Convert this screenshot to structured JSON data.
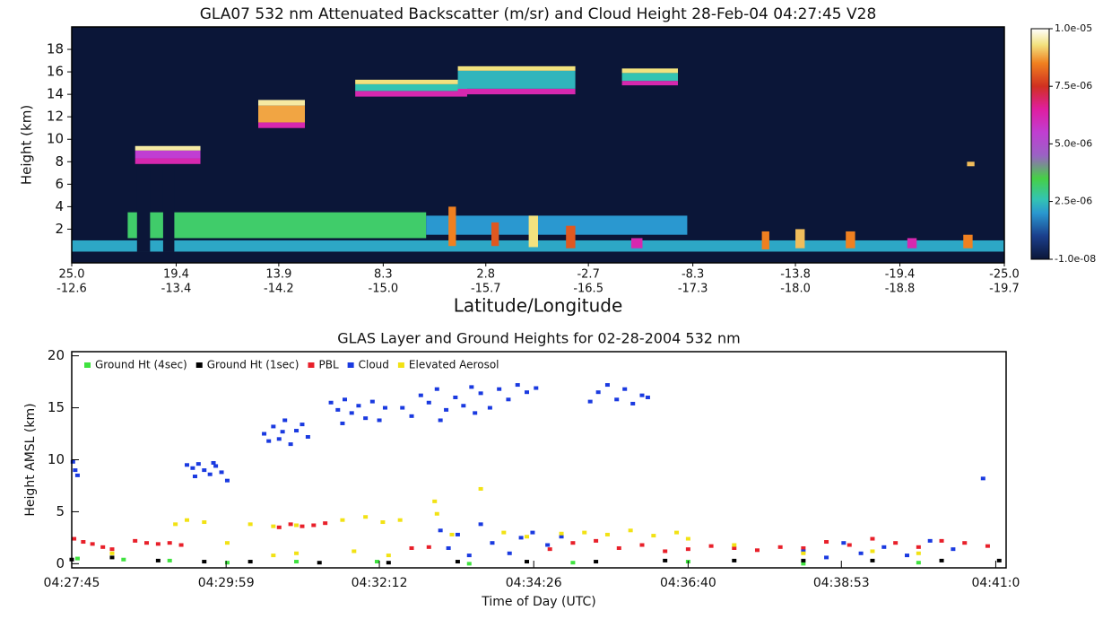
{
  "chart_data": [
    {
      "type": "heatmap",
      "title": "GLA07 532 nm Attenuated Backscatter (m/sr) and Cloud Height 28-Feb-04 04:27:45  V28",
      "ylabel": "Height (km)",
      "xlabel": "Latitude/Longitude",
      "xlim": [
        25.0,
        -25.0
      ],
      "ylim": [
        -1,
        20
      ],
      "xticks": [
        {
          "value": 25.0,
          "label": "25.0"
        },
        19.4,
        13.9,
        8.3,
        2.8,
        -2.7,
        -8.3,
        -13.8,
        -19.4,
        {
          "value": -25.0,
          "label": "-25.0"
        }
      ],
      "x2ticks": [
        -12.6,
        -13.4,
        -14.2,
        {
          "value": -15.0,
          "label": "-15.0"
        },
        -15.7,
        -16.5,
        -17.3,
        {
          "value": -18.0,
          "label": "-18.0"
        },
        -18.8,
        -19.7
      ],
      "yticks": [
        2,
        4,
        6,
        8,
        10,
        12,
        14,
        16,
        18
      ],
      "colorbar": {
        "lim": [
          -1e-08,
          1e-05
        ],
        "ticks": [
          {
            "value": 1e-05,
            "label": "1.0e-05"
          },
          {
            "value": 7.5e-06,
            "label": "7.5e-06"
          },
          {
            "value": 5e-06,
            "label": "5.0e-06"
          },
          {
            "value": 2.5e-06,
            "label": "2.5e-06"
          },
          {
            "value": -1e-08,
            "label": "-1.0e-08"
          }
        ],
        "colormap": [
          {
            "value": -1e-08,
            "color": "#0b1638"
          },
          {
            "value": 1e-06,
            "color": "#1b3f8c"
          },
          {
            "value": 2e-06,
            "color": "#2a98d0"
          },
          {
            "value": 2.6e-06,
            "color": "#33c4b2"
          },
          {
            "value": 3.5e-06,
            "color": "#46d046"
          },
          {
            "value": 4.5e-06,
            "color": "#9a62c4"
          },
          {
            "value": 5.5e-06,
            "color": "#c03ed2"
          },
          {
            "value": 6.5e-06,
            "color": "#e01ea0"
          },
          {
            "value": 7.5e-06,
            "color": "#d03020"
          },
          {
            "value": 8.5e-06,
            "color": "#f08020"
          },
          {
            "value": 9.3e-06,
            "color": "#f2e27e"
          },
          {
            "value": 1e-05,
            "color": "#ffffff"
          }
        ]
      },
      "features": [
        {
          "lat_start": 25.0,
          "lat_end": -25.0,
          "bottom": 0,
          "top": 1.0,
          "value": 2.2e-06
        },
        {
          "lat_start": 22.0,
          "lat_end": 6.0,
          "bottom": 1.2,
          "top": 3.5,
          "value": 3.2e-06
        },
        {
          "lat_start": 6.0,
          "lat_end": -8.0,
          "bottom": 1.5,
          "top": 3.2,
          "value": 2e-06
        },
        {
          "lat_start": 21.5,
          "lat_end": 20.8,
          "bottom": 0,
          "top": 8.0,
          "value": -1e-08
        },
        {
          "lat_start": 20.1,
          "lat_end": 19.5,
          "bottom": 0,
          "top": 8.0,
          "value": -1e-08
        },
        {
          "lat_start": 21.6,
          "lat_end": 18.1,
          "bottom": 7.8,
          "top": 8.3,
          "value": 6.2e-06
        },
        {
          "lat_start": 21.6,
          "lat_end": 18.1,
          "bottom": 8.3,
          "top": 9.0,
          "value": 5.5e-06
        },
        {
          "lat_start": 21.6,
          "lat_end": 18.1,
          "bottom": 9.0,
          "top": 9.4,
          "value": 9.5e-06
        },
        {
          "lat_start": 15.0,
          "lat_end": 12.5,
          "bottom": 11.0,
          "top": 11.5,
          "value": 6.2e-06
        },
        {
          "lat_start": 15.0,
          "lat_end": 12.5,
          "bottom": 11.5,
          "top": 13.0,
          "value": 8.8e-06
        },
        {
          "lat_start": 15.0,
          "lat_end": 12.5,
          "bottom": 13.0,
          "top": 13.5,
          "value": 9.5e-06
        },
        {
          "lat_start": 9.8,
          "lat_end": 3.8,
          "bottom": 13.8,
          "top": 14.3,
          "value": 6.2e-06
        },
        {
          "lat_start": 9.8,
          "lat_end": 3.8,
          "bottom": 14.3,
          "top": 14.9,
          "value": 2.6e-06
        },
        {
          "lat_start": 9.8,
          "lat_end": 3.8,
          "bottom": 14.9,
          "top": 15.3,
          "value": 9.3e-06
        },
        {
          "lat_start": 4.3,
          "lat_end": -2.0,
          "bottom": 14.0,
          "top": 14.5,
          "value": 6.2e-06
        },
        {
          "lat_start": 4.3,
          "lat_end": -2.0,
          "bottom": 14.5,
          "top": 16.1,
          "value": 2.4e-06
        },
        {
          "lat_start": 4.3,
          "lat_end": -2.0,
          "bottom": 16.1,
          "top": 16.5,
          "value": 9.3e-06
        },
        {
          "lat_start": -4.5,
          "lat_end": -7.5,
          "bottom": 14.8,
          "top": 15.2,
          "value": 6.2e-06
        },
        {
          "lat_start": -4.5,
          "lat_end": -7.5,
          "bottom": 15.2,
          "top": 15.9,
          "value": 2.6e-06
        },
        {
          "lat_start": -4.5,
          "lat_end": -7.5,
          "bottom": 15.9,
          "top": 16.3,
          "value": 9.3e-06
        },
        {
          "lat_start": -23.0,
          "lat_end": -23.4,
          "bottom": 7.6,
          "top": 8.0,
          "value": 9e-06
        },
        {
          "lat_start": 4.8,
          "lat_end": 4.4,
          "bottom": 0.5,
          "top": 4.0,
          "value": 8.5e-06
        },
        {
          "lat_start": 2.5,
          "lat_end": 2.1,
          "bottom": 0.5,
          "top": 2.6,
          "value": 8e-06
        },
        {
          "lat_start": 0.5,
          "lat_end": 0.0,
          "bottom": 0.4,
          "top": 3.2,
          "value": 9.3e-06
        },
        {
          "lat_start": -1.5,
          "lat_end": -2.0,
          "bottom": 0.3,
          "top": 2.3,
          "value": 8e-06
        },
        {
          "lat_start": -5.0,
          "lat_end": -5.6,
          "bottom": 0.3,
          "top": 1.2,
          "value": 6.2e-06
        },
        {
          "lat_start": -12.0,
          "lat_end": -12.4,
          "bottom": 0.2,
          "top": 1.8,
          "value": 8.5e-06
        },
        {
          "lat_start": -13.8,
          "lat_end": -14.3,
          "bottom": 0.3,
          "top": 2.0,
          "value": 9e-06
        },
        {
          "lat_start": -16.5,
          "lat_end": -17.0,
          "bottom": 0.3,
          "top": 1.8,
          "value": 8.5e-06
        },
        {
          "lat_start": -19.8,
          "lat_end": -20.3,
          "bottom": 0.3,
          "top": 1.2,
          "value": 6.2e-06
        },
        {
          "lat_start": -22.8,
          "lat_end": -23.3,
          "bottom": 0.3,
          "top": 1.5,
          "value": 8.5e-06
        }
      ]
    },
    {
      "type": "scatter",
      "title": "GLAS Layer and Ground Heights for 02-28-2004 532 nm",
      "xlabel": "Time of Day (UTC)",
      "ylabel": "Height AMSL (km)",
      "xlim": [
        16065,
        16876
      ],
      "ylim": [
        -0.4,
        20.4
      ],
      "xticks": [
        {
          "value": 16065,
          "label": "04:27:45"
        },
        {
          "value": 16199,
          "label": "04:29:59"
        },
        {
          "value": 16332,
          "label": "04:32:12"
        },
        {
          "value": 16466,
          "label": "04:34:26"
        },
        {
          "value": 16600,
          "label": "04:36:40"
        },
        {
          "value": 16733,
          "label": "04:38:53"
        },
        {
          "value": 16867,
          "label": "04:41:0"
        }
      ],
      "yticks": [
        0,
        5,
        10,
        15,
        20
      ],
      "legend": "top-left",
      "series": [
        {
          "name": "Ground Ht (4sec)",
          "color": "#3fe23f",
          "x": [
            16070,
            16110,
            16150,
            16200,
            16260,
            16330,
            16410,
            16500,
            16600,
            16700,
            16800
          ],
          "y": [
            0.5,
            0.4,
            0.3,
            0.1,
            0.2,
            0.2,
            0.0,
            0.1,
            0.2,
            0.0,
            0.1
          ]
        },
        {
          "name": "Ground Ht (1sec)",
          "color": "#000000",
          "x": [
            16065,
            16100,
            16140,
            16180,
            16220,
            16280,
            16340,
            16400,
            16460,
            16520,
            16580,
            16640,
            16700,
            16760,
            16820,
            16870
          ],
          "y": [
            0.4,
            0.6,
            0.3,
            0.2,
            0.2,
            0.1,
            0.1,
            0.2,
            0.2,
            0.2,
            0.3,
            0.3,
            0.3,
            0.3,
            0.3,
            0.3
          ]
        },
        {
          "name": "PBL",
          "color": "#e8202a",
          "x": [
            16067,
            16075,
            16083,
            16092,
            16100,
            16120,
            16130,
            16140,
            16150,
            16160,
            16245,
            16255,
            16265,
            16275,
            16285,
            16360,
            16375,
            16480,
            16500,
            16520,
            16540,
            16560,
            16580,
            16600,
            16620,
            16640,
            16660,
            16680,
            16700,
            16720,
            16740,
            16760,
            16780,
            16800,
            16820,
            16840,
            16860
          ],
          "y": [
            2.4,
            2.1,
            1.9,
            1.6,
            1.4,
            2.2,
            2.0,
            1.9,
            2.0,
            1.8,
            3.5,
            3.8,
            3.6,
            3.7,
            3.9,
            1.5,
            1.6,
            1.4,
            2.0,
            2.2,
            1.5,
            1.8,
            1.2,
            1.4,
            1.7,
            1.5,
            1.3,
            1.6,
            1.5,
            2.1,
            1.8,
            2.4,
            2.0,
            1.6,
            2.2,
            2.0,
            1.7
          ]
        },
        {
          "name": "Cloud",
          "color": "#1a3ae0",
          "x": [
            16066,
            16068,
            16070,
            16165,
            16170,
            16175,
            16180,
            16185,
            16190,
            16195,
            16200,
            16172,
            16188,
            16232,
            16236,
            16240,
            16245,
            16250,
            16255,
            16260,
            16265,
            16270,
            16248,
            16290,
            16296,
            16302,
            16308,
            16314,
            16320,
            16326,
            16332,
            16337,
            16300,
            16352,
            16360,
            16368,
            16375,
            16382,
            16390,
            16398,
            16405,
            16412,
            16420,
            16428,
            16436,
            16444,
            16452,
            16460,
            16468,
            16385,
            16415,
            16515,
            16522,
            16530,
            16538,
            16545,
            16552,
            16560,
            16565,
            16856,
            16385,
            16392,
            16400,
            16410,
            16420,
            16430,
            16445,
            16455,
            16465,
            16478,
            16490,
            16700,
            16720,
            16735,
            16750,
            16770,
            16790,
            16810,
            16830
          ],
          "y": [
            9.8,
            9.0,
            8.5,
            9.5,
            9.2,
            9.6,
            9.0,
            8.6,
            9.4,
            8.8,
            8.0,
            8.4,
            9.7,
            12.5,
            11.8,
            13.2,
            12.0,
            13.8,
            11.5,
            12.8,
            13.4,
            12.2,
            12.7,
            15.5,
            14.8,
            15.8,
            14.5,
            15.2,
            14.0,
            15.6,
            13.8,
            15.0,
            13.5,
            15.0,
            14.2,
            16.2,
            15.5,
            16.8,
            14.8,
            16.0,
            15.2,
            17.0,
            16.4,
            15.0,
            16.8,
            15.8,
            17.2,
            16.5,
            16.9,
            13.8,
            14.5,
            15.6,
            16.5,
            17.2,
            15.8,
            16.8,
            15.4,
            16.2,
            16.0,
            8.2,
            3.2,
            1.5,
            2.8,
            0.8,
            3.8,
            2.0,
            1.0,
            2.5,
            3.0,
            1.8,
            2.6,
            1.2,
            0.6,
            2.0,
            1.0,
            1.6,
            0.8,
            2.2,
            1.4
          ]
        },
        {
          "name": "Elevated Aerosol",
          "color": "#f2e214",
          "x": [
            16100,
            16155,
            16165,
            16180,
            16200,
            16220,
            16240,
            16260,
            16240,
            16260,
            16300,
            16320,
            16335,
            16350,
            16310,
            16340,
            16380,
            16382,
            16420,
            16395,
            16440,
            16460,
            16490,
            16510,
            16530,
            16550,
            16570,
            16590,
            16600,
            16640,
            16700,
            16760,
            16800
          ],
          "y": [
            1.0,
            3.8,
            4.2,
            4.0,
            2.0,
            3.8,
            3.6,
            3.7,
            0.8,
            1.0,
            4.2,
            4.5,
            4.0,
            4.2,
            1.2,
            0.8,
            6.0,
            4.8,
            7.2,
            2.8,
            3.0,
            2.6,
            2.9,
            3.0,
            2.8,
            3.2,
            2.7,
            3.0,
            2.4,
            1.8,
            1.0,
            1.2,
            1.0
          ]
        }
      ]
    }
  ]
}
